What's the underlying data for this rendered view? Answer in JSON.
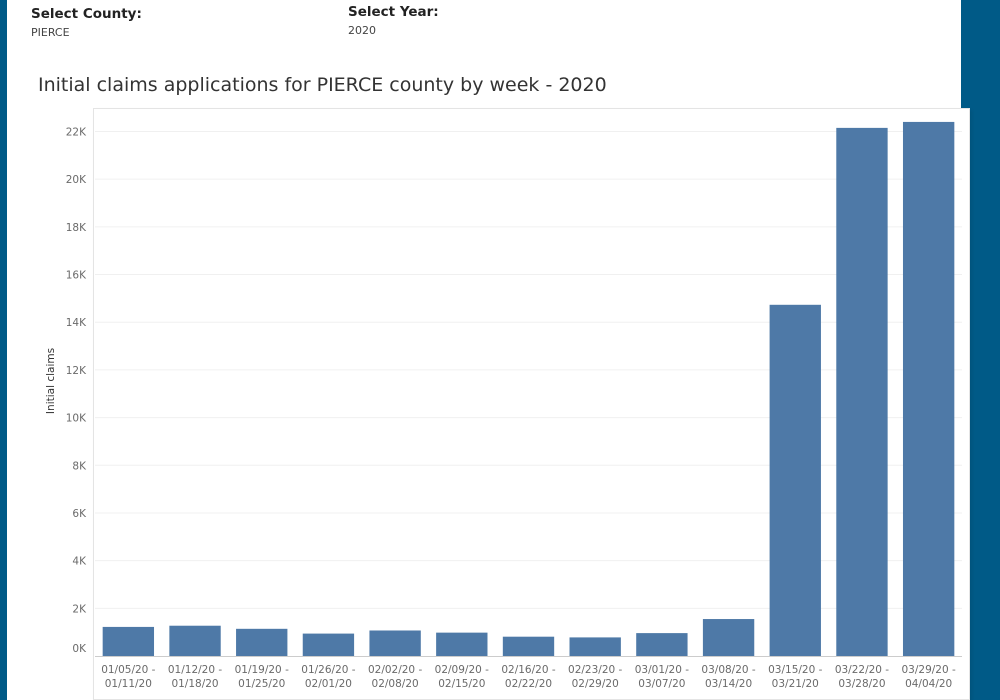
{
  "colors": {
    "side_panel": "#005a87",
    "bar": "#4e79a7",
    "gridline": "#f0f0f0",
    "axis": "#cccccc"
  },
  "filters": {
    "county": {
      "label": "Select County:",
      "value": "PIERCE"
    },
    "year": {
      "label": "Select Year:",
      "value": "2020"
    }
  },
  "chart_data": {
    "type": "bar",
    "title": "Initial claims applications for PIERCE county by week - 2020",
    "xlabel": "",
    "ylabel": "Initial claims",
    "ylim": [
      0,
      22900
    ],
    "yticks": [
      0,
      2000,
      4000,
      6000,
      8000,
      10000,
      12000,
      14000,
      16000,
      18000,
      20000,
      22000
    ],
    "ytick_labels": [
      "0K",
      "2K",
      "4K",
      "6K",
      "8K",
      "10K",
      "12K",
      "14K",
      "16K",
      "18K",
      "20K",
      "22K"
    ],
    "grid": true,
    "categories": [
      [
        "01/05/20 -",
        "01/11/20"
      ],
      [
        "01/12/20 -",
        "01/18/20"
      ],
      [
        "01/19/20 -",
        "01/25/20"
      ],
      [
        "01/26/20 -",
        "02/01/20"
      ],
      [
        "02/02/20 -",
        "02/08/20"
      ],
      [
        "02/09/20 -",
        "02/15/20"
      ],
      [
        "02/16/20 -",
        "02/22/20"
      ],
      [
        "02/23/20 -",
        "02/29/20"
      ],
      [
        "03/01/20 -",
        "03/07/20"
      ],
      [
        "03/08/20 -",
        "03/14/20"
      ],
      [
        "03/15/20 -",
        "03/21/20"
      ],
      [
        "03/22/20 -",
        "03/28/20"
      ],
      [
        "03/29/20 -",
        "04/04/20"
      ]
    ],
    "values": [
      1220,
      1270,
      1140,
      940,
      1070,
      980,
      810,
      780,
      960,
      1550,
      14730,
      22150,
      22400
    ]
  }
}
